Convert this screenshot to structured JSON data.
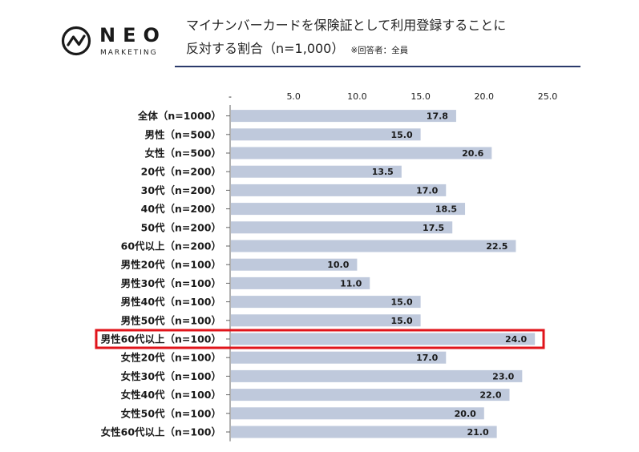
{
  "logo": {
    "name": "NEO",
    "sub": "MARKETING"
  },
  "title": {
    "line1": "マイナンバーカードを保険証として利用登録することに",
    "line2": "反対する割合（n=1,000）",
    "note": "※回答者：全員"
  },
  "colors": {
    "bar": "#bfc9dc",
    "highlight": "#e0141b",
    "rule": "#2b3a6b"
  },
  "chart_data": {
    "type": "bar",
    "orientation": "horizontal",
    "categories": [
      "全体（n=1000）",
      "男性（n=500）",
      "女性（n=500）",
      "20代（n=200）",
      "30代（n=200）",
      "40代（n=200）",
      "50代（n=200）",
      "60代以上（n=200）",
      "男性20代（n=100）",
      "男性30代（n=100）",
      "男性40代（n=100）",
      "男性50代（n=100）",
      "男性60代以上（n=100）",
      "女性20代（n=100）",
      "女性30代（n=100）",
      "女性40代（n=100）",
      "女性50代（n=100）",
      "女性60代以上（n=100）"
    ],
    "values": [
      17.8,
      15.0,
      20.6,
      13.5,
      17.0,
      18.5,
      17.5,
      22.5,
      10.0,
      11.0,
      15.0,
      15.0,
      24.0,
      17.0,
      23.0,
      22.0,
      20.0,
      21.0
    ],
    "value_labels": [
      "17.8",
      "15.0",
      "20.6",
      "13.5",
      "17.0",
      "18.5",
      "17.5",
      "22.5",
      "10.0",
      "11.0",
      "15.0",
      "15.0",
      "24.0",
      "17.0",
      "23.0",
      "22.0",
      "20.0",
      "21.0"
    ],
    "xlim": [
      0,
      25
    ],
    "xticks": [
      0,
      5,
      10,
      15,
      20,
      25
    ],
    "xtick_labels": [
      "-",
      "5.0",
      "10.0",
      "15.0",
      "20.0",
      "25.0"
    ],
    "highlighted_category": "男性60代以上（n=100）",
    "grid": false
  }
}
